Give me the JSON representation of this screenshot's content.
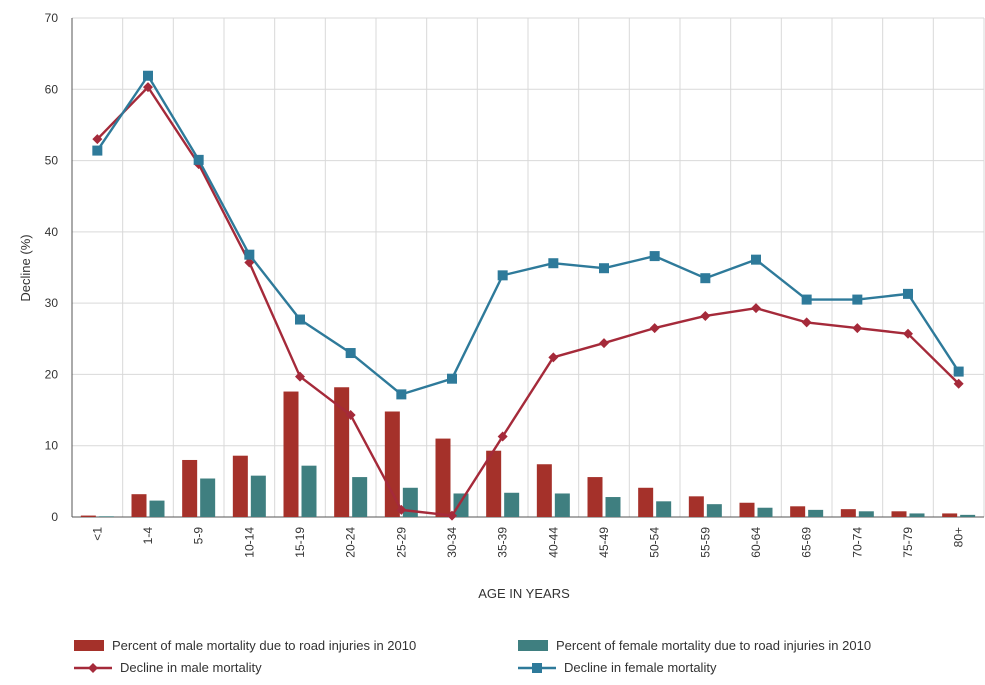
{
  "chart_data": {
    "type": "bar+line",
    "title": "",
    "xlabel": "AGE IN YEARS",
    "ylabel": "Decline (%)",
    "ylim": [
      0,
      70
    ],
    "yticks": [
      0,
      10,
      20,
      30,
      40,
      50,
      60,
      70
    ],
    "grid": true,
    "legend_position": "bottom",
    "categories": [
      "<1",
      "1-4",
      "5-9",
      "10-14",
      "15-19",
      "20-24",
      "25-29",
      "30-34",
      "35-39",
      "40-44",
      "45-49",
      "50-54",
      "55-59",
      "60-64",
      "65-69",
      "70-74",
      "75-79",
      "80+"
    ],
    "bar_series": [
      {
        "name": "Percent of male mortality due to road injuries in 2010",
        "color": "#A5312A",
        "values": [
          0.2,
          3.2,
          8.0,
          8.6,
          17.6,
          18.2,
          14.8,
          11.0,
          9.3,
          7.4,
          5.6,
          4.1,
          2.9,
          2.0,
          1.5,
          1.1,
          0.8,
          0.5
        ]
      },
      {
        "name": "Percent of female mortality due to road injuries in 2010",
        "color": "#3F7F80",
        "values": [
          0.1,
          2.3,
          5.4,
          5.8,
          7.2,
          5.6,
          4.1,
          3.3,
          3.4,
          3.3,
          2.8,
          2.2,
          1.8,
          1.3,
          1.0,
          0.8,
          0.5,
          0.3
        ]
      }
    ],
    "line_series": [
      {
        "name": "Decline in male mortality",
        "color": "#A52A3A",
        "marker": "diamond",
        "values": [
          53.0,
          60.3,
          49.5,
          35.7,
          19.7,
          14.3,
          1.0,
          0.2,
          11.3,
          22.4,
          24.4,
          26.5,
          28.2,
          29.3,
          27.3,
          26.5,
          25.7,
          18.7
        ]
      },
      {
        "name": "Decline in female mortality",
        "color": "#2E7A9A",
        "marker": "square",
        "values": [
          51.4,
          61.9,
          50.1,
          36.8,
          27.7,
          23.0,
          17.2,
          19.4,
          33.9,
          35.6,
          34.9,
          36.6,
          33.5,
          36.1,
          30.5,
          30.5,
          31.3,
          20.4
        ]
      }
    ]
  }
}
